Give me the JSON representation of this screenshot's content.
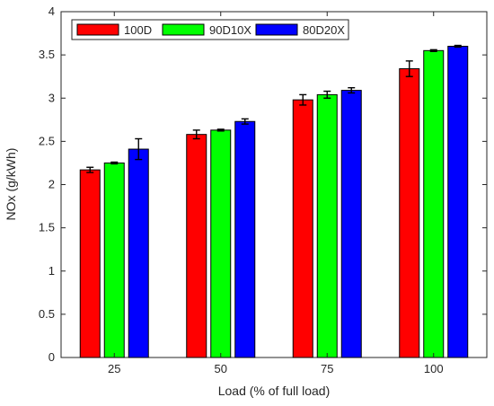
{
  "chart_data": {
    "type": "bar",
    "title": "",
    "xlabel": "Load (% of full load)",
    "ylabel": "NOx (g/kWh)",
    "ylim": [
      0,
      4
    ],
    "yticks": [
      "0",
      "0.5",
      "1",
      "1.5",
      "2",
      "2.5",
      "3",
      "3.5",
      "4"
    ],
    "categories": [
      "25",
      "50",
      "75",
      "100"
    ],
    "series": [
      {
        "name": "100D",
        "color": "#ff0000",
        "values": [
          2.17,
          2.58,
          2.98,
          3.34
        ],
        "errors": [
          0.03,
          0.05,
          0.06,
          0.09
        ]
      },
      {
        "name": "90D10X",
        "color": "#00ff00",
        "values": [
          2.25,
          2.63,
          3.04,
          3.55
        ],
        "errors": [
          0.01,
          0.01,
          0.04,
          0.01
        ]
      },
      {
        "name": "80D20X",
        "color": "#0000ff",
        "values": [
          2.41,
          2.73,
          3.09,
          3.6
        ],
        "errors": [
          0.12,
          0.03,
          0.03,
          0.01
        ]
      }
    ],
    "legend_position": "top-left",
    "grid": false
  }
}
